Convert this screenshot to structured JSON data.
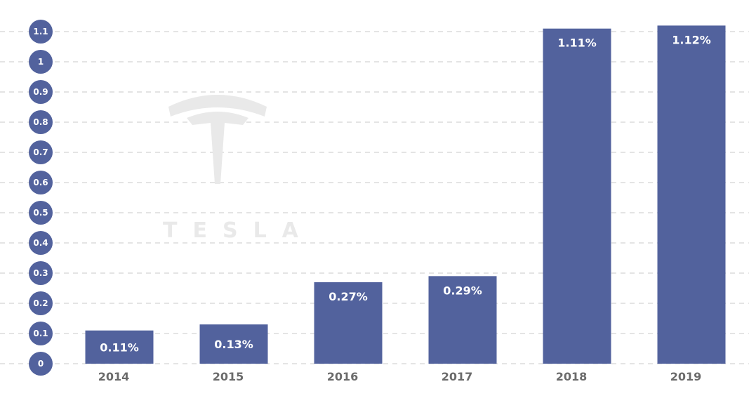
{
  "chart_data": {
    "type": "bar",
    "title": "",
    "xlabel": "",
    "ylabel": "",
    "categories": [
      "2014",
      "2015",
      "2016",
      "2017",
      "2018",
      "2019"
    ],
    "values": [
      0.11,
      0.13,
      0.27,
      0.29,
      1.11,
      1.12
    ],
    "value_labels": [
      "0.11%",
      "0.13%",
      "0.27%",
      "0.29%",
      "1.11%",
      "1.12%"
    ],
    "yticks": [
      "0",
      "0.1",
      "0.2",
      "0.3",
      "0.4",
      "0.5",
      "0.6",
      "0.7",
      "0.8",
      "0.9",
      "1",
      "1.1"
    ],
    "ylim": [
      0,
      1.1
    ],
    "grid": true,
    "legend": "none"
  },
  "watermark": {
    "text": "TESLA",
    "icon": "tesla-logo-icon"
  },
  "colors": {
    "bar": "#52629d",
    "tick_circle": "#52629d",
    "grid": "#c8c8c8",
    "axis_text": "#6b6b6b",
    "watermark": "#e9e9e9"
  }
}
